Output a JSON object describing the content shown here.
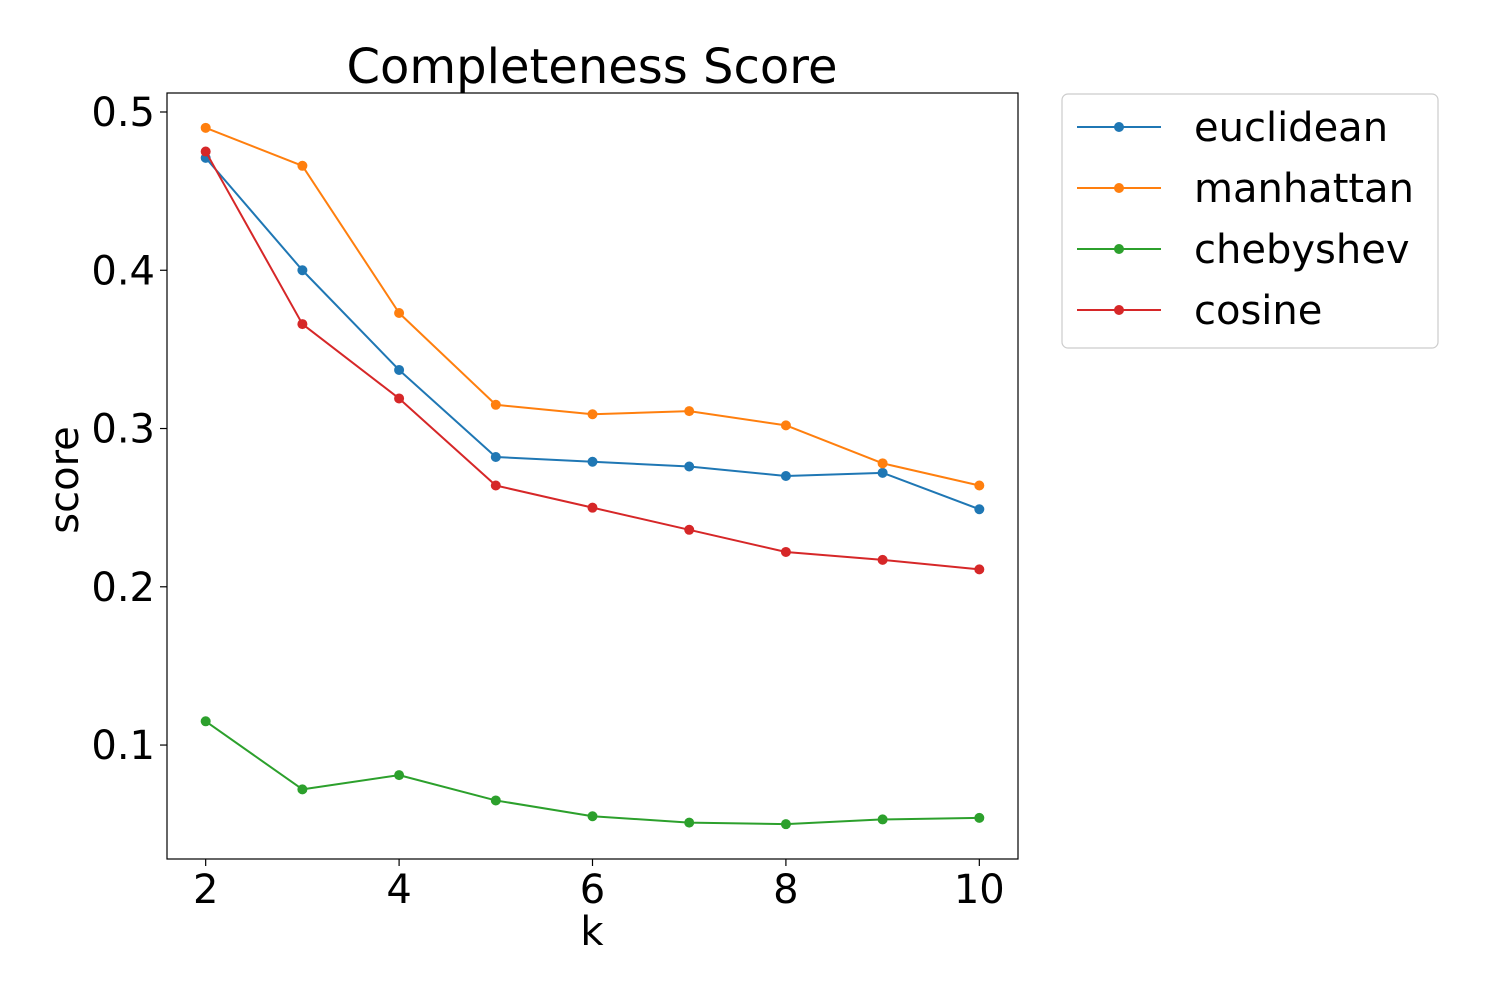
{
  "chart_data": {
    "type": "line",
    "title": "Completeness Score",
    "xlabel": "k",
    "ylabel": "score",
    "x": [
      2,
      3,
      4,
      5,
      6,
      7,
      8,
      9,
      10
    ],
    "xlim": [
      1.6,
      10.4
    ],
    "ylim": [
      0.028,
      0.512
    ],
    "xticks": [
      2,
      4,
      6,
      8,
      10
    ],
    "yticks": [
      0.1,
      0.2,
      0.3,
      0.4,
      0.5
    ],
    "yticklabels": [
      "0.1",
      "0.2",
      "0.3",
      "0.4",
      "0.5"
    ],
    "grid": false,
    "legend_position": "outside-top-right",
    "series": [
      {
        "name": "euclidean",
        "color": "#1f77b4",
        "values": [
          0.471,
          0.4,
          0.337,
          0.282,
          0.279,
          0.276,
          0.27,
          0.272,
          0.249
        ]
      },
      {
        "name": "manhattan",
        "color": "#ff7f0e",
        "values": [
          0.49,
          0.466,
          0.373,
          0.315,
          0.309,
          0.311,
          0.302,
          0.278,
          0.264
        ]
      },
      {
        "name": "chebyshev",
        "color": "#2ca02c",
        "values": [
          0.115,
          0.072,
          0.081,
          0.065,
          0.055,
          0.051,
          0.05,
          0.053,
          0.054
        ]
      },
      {
        "name": "cosine",
        "color": "#d62728",
        "values": [
          0.475,
          0.366,
          0.319,
          0.264,
          0.25,
          0.236,
          0.222,
          0.217,
          0.211
        ]
      }
    ]
  }
}
